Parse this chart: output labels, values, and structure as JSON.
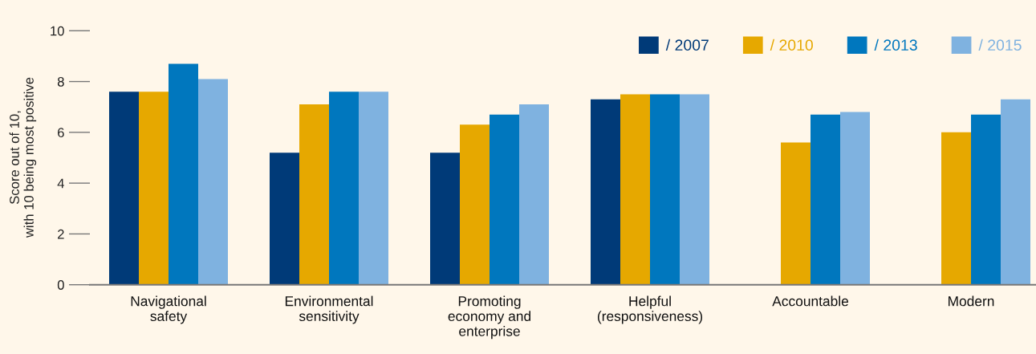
{
  "chart_data": {
    "type": "bar",
    "ylabel": "Score out of 10,\nwith 10 being most positive",
    "categories": [
      "Navigational\nsafety",
      "Environmental\nsensitivity",
      "Promoting\neconomy and\nenterprise",
      "Helpful\n(responsiveness)",
      "Accountable",
      "Modern"
    ],
    "series": [
      {
        "name": "/ 2007",
        "color": "#003a78",
        "values": [
          7.6,
          5.2,
          5.2,
          7.3,
          null,
          null
        ]
      },
      {
        "name": "/ 2010",
        "color": "#e6a800",
        "values": [
          7.6,
          7.1,
          6.3,
          7.5,
          5.6,
          6.0
        ]
      },
      {
        "name": "/ 2013",
        "color": "#0077be",
        "values": [
          8.7,
          7.6,
          6.7,
          7.5,
          6.7,
          6.7
        ]
      },
      {
        "name": "/ 2015",
        "color": "#7fb2e0",
        "values": [
          8.1,
          7.6,
          7.1,
          7.5,
          6.8,
          7.3
        ]
      }
    ],
    "ylim": [
      0,
      10
    ],
    "yticks": [
      0,
      2,
      4,
      6,
      8,
      10
    ],
    "grid": false,
    "legend": "top right"
  }
}
